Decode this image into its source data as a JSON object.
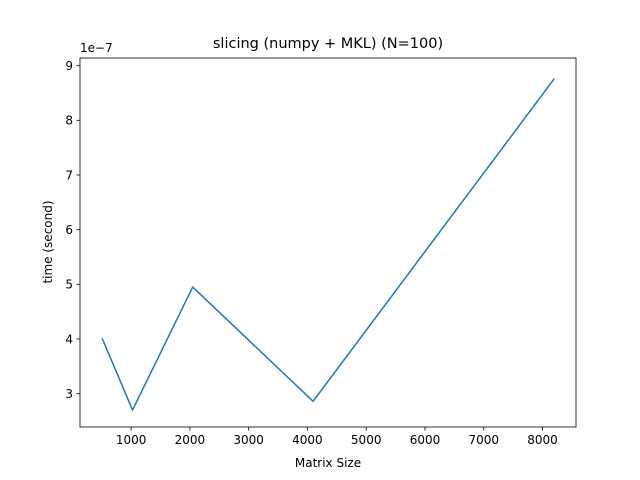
{
  "chart_data": {
    "type": "line",
    "title": "slicing (numpy + MKL) (N=100)",
    "xlabel": "Matrix Size",
    "ylabel": "time (second)",
    "y_offset_label": "1e−7",
    "xlim": [
      130,
      8570
    ],
    "ylim": [
      2.39,
      9.14
    ],
    "x_ticks": [
      1000,
      2000,
      3000,
      4000,
      5000,
      6000,
      7000,
      8000
    ],
    "x_tick_labels": [
      "1000",
      "2000",
      "3000",
      "4000",
      "5000",
      "6000",
      "7000",
      "8000"
    ],
    "y_ticks": [
      3,
      4,
      5,
      6,
      7,
      8,
      9
    ],
    "y_tick_labels": [
      "3",
      "4",
      "5",
      "6",
      "7",
      "8",
      "9"
    ],
    "grid": false,
    "series": [
      {
        "color": "#1f77b4",
        "x": [
          512,
          1024,
          2048,
          4096,
          8192
        ],
        "y": [
          4.0,
          2.7,
          4.95,
          2.86,
          8.75
        ]
      }
    ]
  }
}
